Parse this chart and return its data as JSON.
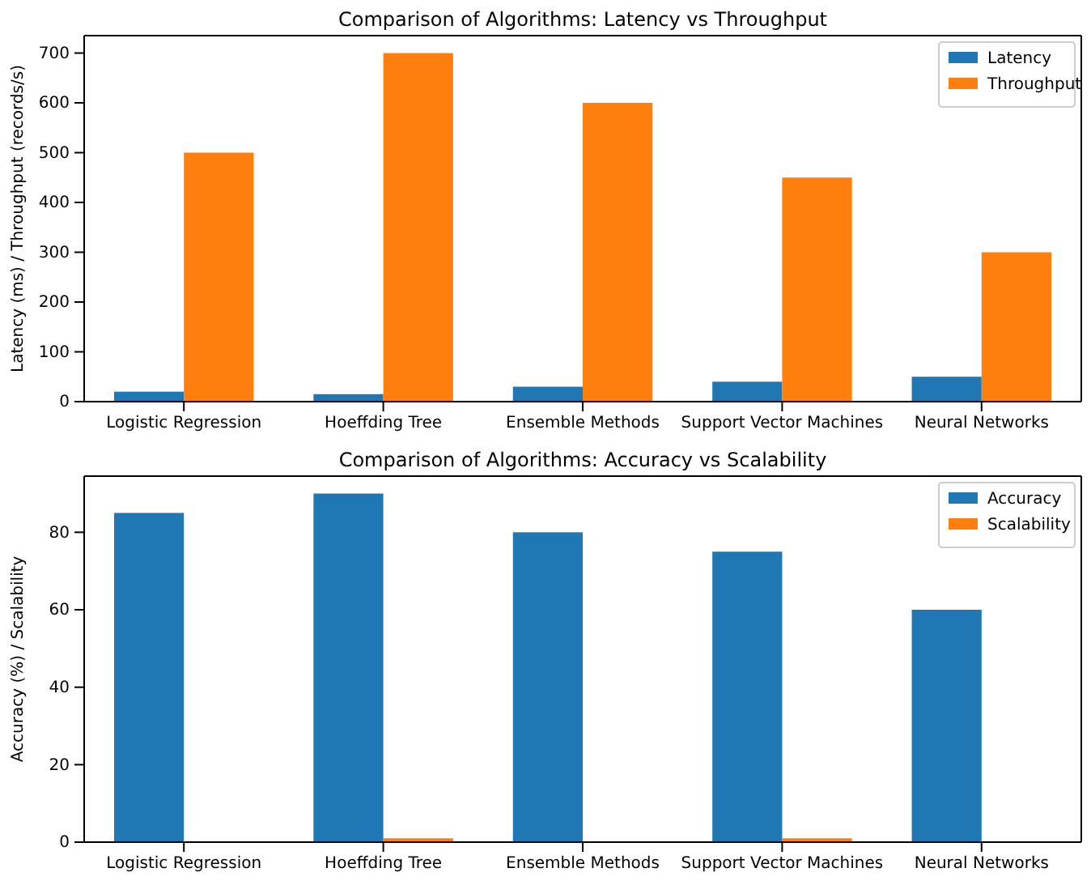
{
  "chart_data": [
    {
      "type": "bar",
      "title": "Comparison of Algorithms: Latency vs Throughput",
      "ylabel": "Latency (ms) / Throughput (records/s)",
      "categories": [
        "Logistic Regression",
        "Hoeffding Tree",
        "Ensemble Methods",
        "Support Vector Machines",
        "Neural Networks"
      ],
      "series": [
        {
          "name": "Latency",
          "color": "#1f77b4",
          "values": [
            20,
            15,
            30,
            40,
            50
          ]
        },
        {
          "name": "Throughput",
          "color": "#ff7f0e",
          "values": [
            500,
            700,
            600,
            450,
            300
          ]
        }
      ],
      "ylim": [
        0,
        735
      ],
      "yticks": [
        0,
        100,
        200,
        300,
        400,
        500,
        600,
        700
      ],
      "legend": "top right"
    },
    {
      "type": "bar",
      "title": "Comparison of Algorithms: Accuracy vs Scalability",
      "ylabel": "Accuracy (%) / Scalability",
      "categories": [
        "Logistic Regression",
        "Hoeffding Tree",
        "Ensemble Methods",
        "Support Vector Machines",
        "Neural Networks"
      ],
      "series": [
        {
          "name": "Accuracy",
          "color": "#1f77b4",
          "values": [
            85,
            90,
            80,
            75,
            60
          ]
        },
        {
          "name": "Scalability",
          "color": "#ff7f0e",
          "values": [
            0,
            1,
            0,
            1,
            0
          ]
        }
      ],
      "ylim": [
        0,
        94.5
      ],
      "yticks": [
        0,
        20,
        40,
        60,
        80
      ],
      "legend": "top right"
    }
  ]
}
